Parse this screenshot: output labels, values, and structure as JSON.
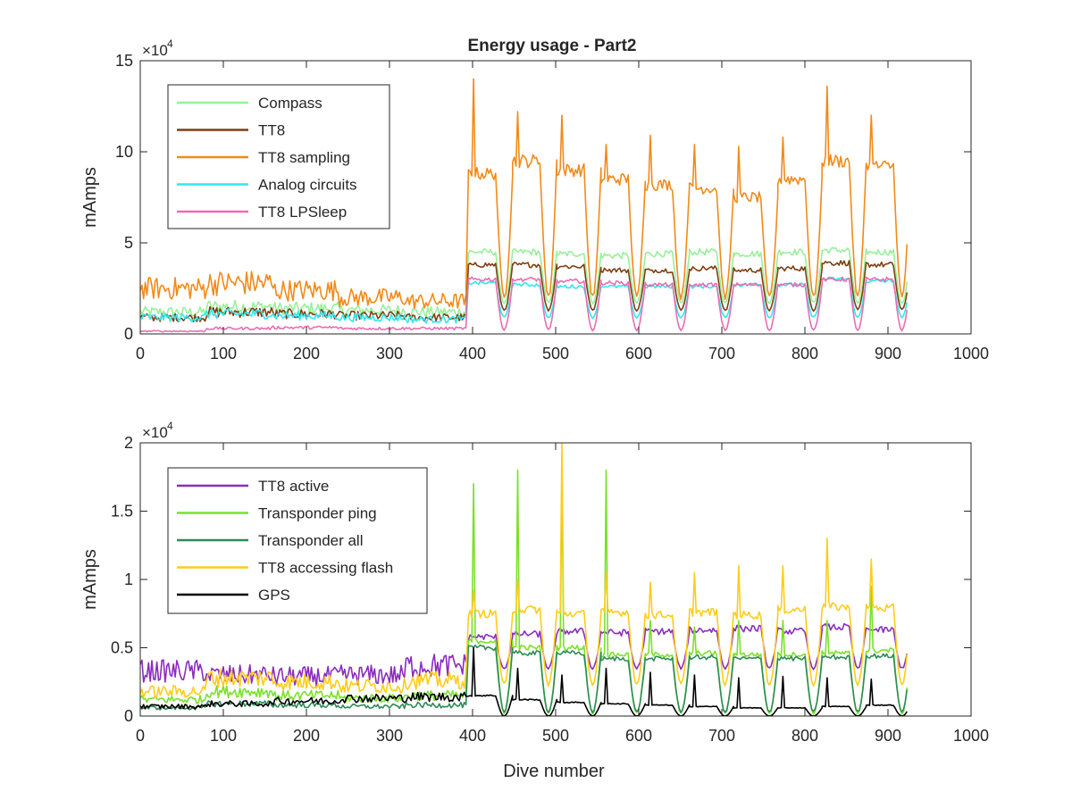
{
  "figure": {
    "title": "Energy usage - Part2",
    "xlabel": "Dive number"
  },
  "chart_data": [
    {
      "type": "line",
      "title": "Energy usage - Part2",
      "xlabel": "",
      "ylabel": "mAmps",
      "xlim": [
        0,
        1000
      ],
      "ylim": [
        0,
        150000
      ],
      "xticks": [
        "0",
        "100",
        "200",
        "300",
        "400",
        "500",
        "600",
        "700",
        "800",
        "900",
        "1000"
      ],
      "yticks": [
        "0",
        "5",
        "10",
        "15"
      ],
      "exponent_label": "×10",
      "exponent_power": "4",
      "grid": false,
      "legend_placement": "top-left",
      "series": [
        {
          "name": "Compass",
          "color": "#98f09a",
          "low": [
            12000,
            15000,
            14000,
            13000,
            12000
          ],
          "high_levels": [
            45000,
            45000,
            44000,
            43000,
            44000,
            45000,
            44000,
            45000,
            46000,
            45000
          ],
          "trough": 17000
        },
        {
          "name": "TT8",
          "color": "#7f3f12",
          "low": [
            9000,
            12000,
            11000,
            10000,
            9000
          ],
          "high_levels": [
            38000,
            38000,
            37000,
            35000,
            35000,
            36000,
            35000,
            36000,
            39000,
            38000
          ],
          "trough": 13000
        },
        {
          "name": "TT8 sampling",
          "color": "#f28a19",
          "low": [
            25000,
            28000,
            24000,
            20000,
            18000
          ],
          "high_levels": [
            88000,
            95000,
            90000,
            85000,
            82000,
            80000,
            75000,
            85000,
            95000,
            92000
          ],
          "peaks": [
            140000,
            122000,
            120000,
            104000,
            109000,
            104000,
            103000,
            108000,
            136000,
            120000
          ],
          "trough": 20000
        },
        {
          "name": "Analog circuits",
          "color": "#2ee8ee",
          "low": [
            9000,
            11000,
            10000,
            9000,
            8000
          ],
          "high_levels": [
            28000,
            27000,
            26000,
            26000,
            26000,
            26000,
            27000,
            27000,
            30000,
            29000
          ],
          "trough": 9000
        },
        {
          "name": "TT8 LPSleep",
          "color": "#e96db4",
          "low": [
            1500,
            3000,
            3500,
            3000,
            3000
          ],
          "high_levels": [
            30000,
            30000,
            29000,
            28000,
            27000,
            27000,
            27000,
            27000,
            30000,
            30000
          ],
          "trough": 2000
        }
      ]
    },
    {
      "type": "line",
      "title": "",
      "xlabel": "Dive number",
      "ylabel": "mAmps",
      "xlim": [
        0,
        1000
      ],
      "ylim": [
        0,
        20000
      ],
      "xticks": [
        "0",
        "100",
        "200",
        "300",
        "400",
        "500",
        "600",
        "700",
        "800",
        "900",
        "1000"
      ],
      "yticks": [
        "0",
        "0.5",
        "1",
        "1.5",
        "2"
      ],
      "exponent_label": "×10",
      "exponent_power": "4",
      "grid": false,
      "legend_placement": "top-left",
      "series": [
        {
          "name": "TT8 active",
          "color": "#8a2dbd",
          "low": [
            3300,
            3000,
            2900,
            3000,
            3700
          ],
          "high_levels": [
            5800,
            6000,
            6200,
            6100,
            6200,
            6300,
            6400,
            6200,
            6500,
            6300
          ],
          "trough": 3500
        },
        {
          "name": "Transponder ping",
          "color": "#7be02a",
          "low": [
            1200,
            1800,
            1500,
            1300,
            1500
          ],
          "high_levels": [
            5500,
            5000,
            5000,
            4500,
            4500,
            4600,
            4500,
            4500,
            4600,
            4800
          ],
          "peaks": [
            17000,
            18000,
            18000,
            18000,
            7000,
            6500,
            7000,
            7000,
            7000,
            9500
          ],
          "trough": 200
        },
        {
          "name": "Transponder all",
          "color": "#2e8b57",
          "low": [
            600,
            900,
            800,
            700,
            800
          ],
          "high_levels": [
            5000,
            4600,
            4600,
            4200,
            4200,
            4300,
            4200,
            4200,
            4300,
            4400
          ],
          "trough": 300
        },
        {
          "name": "TT8 accessing flash",
          "color": "#ffcc1a",
          "low": [
            1800,
            2800,
            2500,
            2200,
            2600
          ],
          "high_levels": [
            7500,
            7800,
            7500,
            7600,
            7400,
            7600,
            7400,
            7800,
            8000,
            7900
          ],
          "peaks": [
            9200,
            10000,
            20000,
            10500,
            9800,
            10500,
            11000,
            11000,
            13000,
            11500
          ],
          "trough": 2300
        },
        {
          "name": "GPS",
          "color": "#000000",
          "low": [
            700,
            900,
            1100,
            1300,
            1400
          ],
          "high_levels": [
            1500,
            1200,
            1000,
            900,
            800,
            700,
            600,
            600,
            700,
            800
          ],
          "peaks": [
            5000,
            3500,
            3000,
            3500,
            3200,
            3000,
            2800,
            2900,
            2800,
            2700
          ],
          "trough": 0
        }
      ]
    }
  ]
}
